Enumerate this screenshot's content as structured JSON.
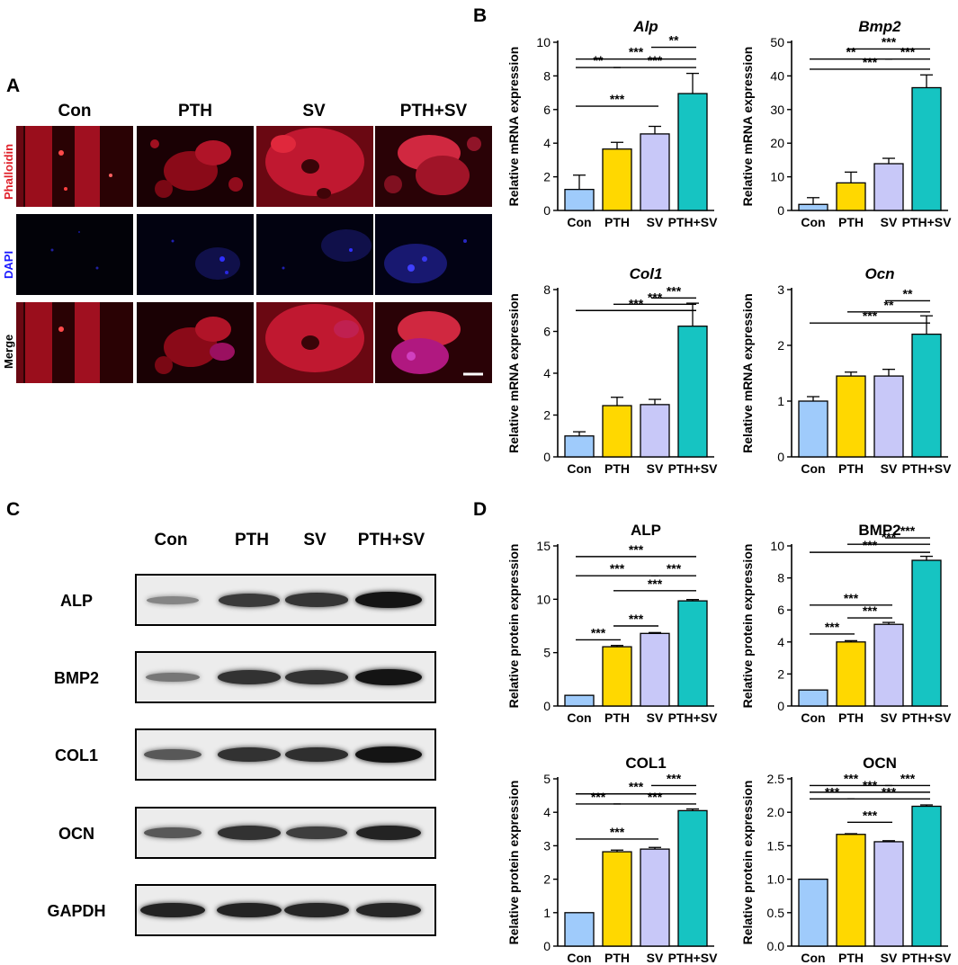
{
  "panels": {
    "A": "A",
    "B": "B",
    "C": "C",
    "D": "D"
  },
  "micro": {
    "columns": [
      "Con",
      "PTH",
      "SV",
      "PTH+SV"
    ],
    "rows": [
      {
        "label": "Phalloidin",
        "color": "#e0202a"
      },
      {
        "label": "DAPI",
        "color": "#1a1aff"
      },
      {
        "label": "Merge",
        "color": "#000000"
      }
    ]
  },
  "western": {
    "columns": [
      "Con",
      "PTH",
      "SV",
      "PTH+SV"
    ],
    "rows": [
      {
        "label": "ALP",
        "intensity": [
          0.25,
          0.75,
          0.78,
          1.0
        ]
      },
      {
        "label": "BMP2",
        "intensity": [
          0.35,
          0.8,
          0.8,
          1.0
        ]
      },
      {
        "label": "COL1",
        "intensity": [
          0.55,
          0.8,
          0.82,
          1.0
        ]
      },
      {
        "label": "OCN",
        "intensity": [
          0.55,
          0.8,
          0.72,
          0.9
        ]
      },
      {
        "label": "GAPDH",
        "intensity": [
          0.9,
          0.9,
          0.88,
          0.88
        ]
      }
    ]
  },
  "colors": {
    "Con": "#9fcbfb",
    "PTH": "#ffd800",
    "SV": "#c8c8f8",
    "PTH+SV": "#16c4c2"
  },
  "chart_data": [
    {
      "id": "alp-mrna",
      "type": "bar",
      "title": "Alp",
      "italic": true,
      "ylabel": "Relative mRNA expression",
      "categories": [
        "Con",
        "PTH",
        "SV",
        "PTH+SV"
      ],
      "values": [
        1.25,
        3.65,
        4.55,
        6.95
      ],
      "errors": [
        0.85,
        0.4,
        0.45,
        1.2
      ],
      "ylim": [
        0,
        10
      ],
      "yticks": [
        0,
        2,
        4,
        6,
        8,
        10
      ],
      "tick_labels": [
        "0",
        "2",
        "4",
        "6",
        "8",
        "10"
      ],
      "significance": [
        {
          "from": 2,
          "to": 3,
          "level": 9.7,
          "label": "**"
        },
        {
          "from": 0,
          "to": 3,
          "level": 9.0,
          "label": "***"
        },
        {
          "from": 0,
          "to": 1,
          "level": 8.5,
          "label": "**"
        },
        {
          "from": 1,
          "to": 3,
          "level": 8.5,
          "label": "***"
        },
        {
          "from": 0,
          "to": 2,
          "level": 6.2,
          "label": "***"
        }
      ]
    },
    {
      "id": "bmp2-mrna",
      "type": "bar",
      "title": "Bmp2",
      "italic": true,
      "ylabel": "Relative mRNA expression",
      "categories": [
        "Con",
        "PTH",
        "SV",
        "PTH+SV"
      ],
      "values": [
        1.8,
        8.2,
        13.9,
        36.5
      ],
      "errors": [
        2.0,
        3.2,
        1.6,
        3.8
      ],
      "ylim": [
        0,
        50
      ],
      "yticks": [
        0,
        10,
        20,
        30,
        40,
        50
      ],
      "tick_labels": [
        "0",
        "10",
        "20",
        "30",
        "40",
        "50"
      ],
      "significance": [
        {
          "from": 1,
          "to": 3,
          "level": 48.0,
          "label": "***"
        },
        {
          "from": 0,
          "to": 2,
          "level": 45.0,
          "label": "**"
        },
        {
          "from": 2,
          "to": 3,
          "level": 45.0,
          "label": "***"
        },
        {
          "from": 0,
          "to": 3,
          "level": 42.0,
          "label": "***"
        }
      ]
    },
    {
      "id": "col1-mrna",
      "type": "bar",
      "title": "Col1",
      "italic": true,
      "ylabel": "Relative mRNA expression",
      "categories": [
        "Con",
        "PTH",
        "SV",
        "PTH+SV"
      ],
      "values": [
        1.0,
        2.45,
        2.5,
        6.25
      ],
      "errors": [
        0.2,
        0.4,
        0.25,
        1.1
      ],
      "ylim": [
        0,
        8
      ],
      "yticks": [
        0,
        2,
        4,
        6,
        8
      ],
      "tick_labels": [
        "0",
        "2",
        "4",
        "6",
        "8"
      ],
      "significance": [
        {
          "from": 2,
          "to": 3,
          "level": 7.6,
          "label": "***"
        },
        {
          "from": 1,
          "to": 3,
          "level": 7.3,
          "label": "***"
        },
        {
          "from": 0,
          "to": 3,
          "level": 7.0,
          "label": "***"
        }
      ]
    },
    {
      "id": "ocn-mrna",
      "type": "bar",
      "title": "Ocn",
      "italic": true,
      "ylabel": "Relative mRNA expression",
      "categories": [
        "Con",
        "PTH",
        "SV",
        "PTH+SV"
      ],
      "values": [
        1.0,
        1.45,
        1.45,
        2.2
      ],
      "errors": [
        0.08,
        0.07,
        0.12,
        0.33
      ],
      "ylim": [
        0,
        3
      ],
      "yticks": [
        0,
        1,
        2,
        3
      ],
      "tick_labels": [
        "0",
        "1",
        "2",
        "3"
      ],
      "significance": [
        {
          "from": 2,
          "to": 3,
          "level": 2.8,
          "label": "**"
        },
        {
          "from": 1,
          "to": 3,
          "level": 2.6,
          "label": "**"
        },
        {
          "from": 0,
          "to": 3,
          "level": 2.4,
          "label": "***"
        }
      ]
    },
    {
      "id": "alp-protein",
      "type": "bar",
      "title": "ALP",
      "italic": false,
      "ylabel": "Relative protein expression",
      "categories": [
        "Con",
        "PTH",
        "SV",
        "PTH+SV"
      ],
      "values": [
        1.0,
        5.55,
        6.8,
        9.85
      ],
      "errors": [
        0,
        0.12,
        0.08,
        0.12
      ],
      "ylim": [
        0,
        15
      ],
      "yticks": [
        0,
        5,
        10,
        15
      ],
      "tick_labels": [
        "0",
        "5",
        "10",
        "15"
      ],
      "significance": [
        {
          "from": 0,
          "to": 3,
          "level": 14.0,
          "label": "***"
        },
        {
          "from": 0,
          "to": 2,
          "level": 12.2,
          "label": "***"
        },
        {
          "from": 2,
          "to": 3,
          "level": 12.2,
          "label": "***"
        },
        {
          "from": 1,
          "to": 3,
          "level": 10.8,
          "label": "***"
        },
        {
          "from": 1,
          "to": 2,
          "level": 7.5,
          "label": "***"
        },
        {
          "from": 0,
          "to": 1,
          "level": 6.2,
          "label": "***"
        }
      ]
    },
    {
      "id": "bmp2-protein",
      "type": "bar",
      "title": "BMP2",
      "italic": false,
      "ylabel": "Relative protein expression",
      "categories": [
        "Con",
        "PTH",
        "SV",
        "PTH+SV"
      ],
      "values": [
        1.0,
        4.0,
        5.1,
        9.1
      ],
      "errors": [
        0,
        0.08,
        0.12,
        0.25
      ],
      "ylim": [
        0,
        10
      ],
      "yticks": [
        0,
        2,
        4,
        6,
        8,
        10
      ],
      "tick_labels": [
        "0",
        "2",
        "4",
        "6",
        "8",
        "10"
      ],
      "significance": [
        {
          "from": 2,
          "to": 3,
          "level": 10.5,
          "label": "***"
        },
        {
          "from": 1,
          "to": 3,
          "level": 10.1,
          "label": "***"
        },
        {
          "from": 0,
          "to": 3,
          "level": 9.6,
          "label": "***"
        },
        {
          "from": 0,
          "to": 2,
          "level": 6.3,
          "label": "***"
        },
        {
          "from": 1,
          "to": 2,
          "level": 5.5,
          "label": "***"
        },
        {
          "from": 0,
          "to": 1,
          "level": 4.5,
          "label": "***"
        }
      ]
    },
    {
      "id": "col1-protein",
      "type": "bar",
      "title": "COL1",
      "italic": false,
      "ylabel": "Relative protein expression",
      "categories": [
        "Con",
        "PTH",
        "SV",
        "PTH+SV"
      ],
      "values": [
        1.0,
        2.82,
        2.9,
        4.05
      ],
      "errors": [
        0,
        0.05,
        0.05,
        0.05
      ],
      "ylim": [
        0,
        5
      ],
      "yticks": [
        0,
        1,
        2,
        3,
        4,
        5
      ],
      "tick_labels": [
        "0",
        "1",
        "2",
        "3",
        "4",
        "5"
      ],
      "significance": [
        {
          "from": 2,
          "to": 3,
          "level": 4.8,
          "label": "***"
        },
        {
          "from": 0,
          "to": 3,
          "level": 4.55,
          "label": "***"
        },
        {
          "from": 0,
          "to": 1,
          "level": 4.25,
          "label": "***"
        },
        {
          "from": 1,
          "to": 3,
          "level": 4.25,
          "label": "***"
        },
        {
          "from": 0,
          "to": 2,
          "level": 3.2,
          "label": "***"
        }
      ]
    },
    {
      "id": "ocn-protein",
      "type": "bar",
      "title": "OCN",
      "italic": false,
      "ylabel": "Relative protein expression",
      "categories": [
        "Con",
        "PTH",
        "SV",
        "PTH+SV"
      ],
      "values": [
        1.0,
        1.67,
        1.56,
        2.09
      ],
      "errors": [
        0,
        0.01,
        0.015,
        0.02
      ],
      "ylim": [
        0,
        2.5
      ],
      "yticks": [
        0,
        0.5,
        1.0,
        1.5,
        2.0,
        2.5
      ],
      "tick_labels": [
        "0.0",
        "0.5",
        "1.0",
        "1.5",
        "2.0",
        "2.5"
      ],
      "significance": [
        {
          "from": 0,
          "to": 2,
          "level": 2.4,
          "label": "***"
        },
        {
          "from": 2,
          "to": 3,
          "level": 2.4,
          "label": "***"
        },
        {
          "from": 0,
          "to": 3,
          "level": 2.3,
          "label": "***"
        },
        {
          "from": 0,
          "to": 1,
          "level": 2.2,
          "label": "***"
        },
        {
          "from": 1,
          "to": 3,
          "level": 2.2,
          "label": "***"
        },
        {
          "from": 1,
          "to": 2,
          "level": 1.85,
          "label": "***"
        }
      ]
    }
  ]
}
